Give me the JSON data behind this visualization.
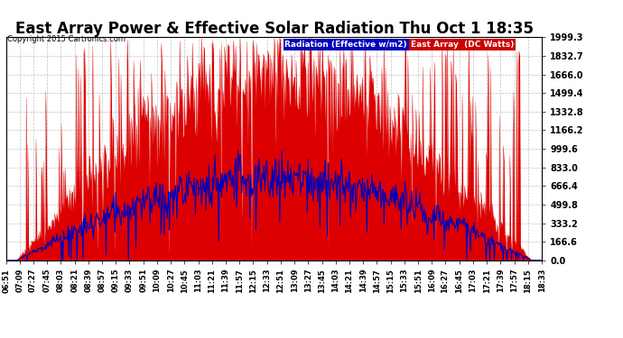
{
  "title": "East Array Power & Effective Solar Radiation Thu Oct 1 18:35",
  "copyright": "Copyright 2015 Cartronics.com",
  "legend_radiation": "Radiation (Effective w/m2)",
  "legend_east": "East Array  (DC Watts)",
  "legend_radiation_color": "#0000bb",
  "legend_east_color": "#cc0000",
  "y_ticks": [
    0.0,
    166.6,
    333.2,
    499.8,
    666.4,
    833.0,
    999.6,
    1166.2,
    1332.8,
    1499.4,
    1666.0,
    1832.7,
    1999.3
  ],
  "ymax": 1999.3,
  "ymin": 0.0,
  "background_color": "#ffffff",
  "plot_bg": "#ffffff",
  "grid_color": "#c0c0c0",
  "title_fontsize": 12,
  "x_tick_labels": [
    "06:51",
    "07:09",
    "07:27",
    "07:45",
    "08:03",
    "08:21",
    "08:39",
    "08:57",
    "09:15",
    "09:33",
    "09:51",
    "10:09",
    "10:27",
    "10:45",
    "11:03",
    "11:21",
    "11:39",
    "11:57",
    "12:15",
    "12:33",
    "12:51",
    "13:09",
    "13:27",
    "13:45",
    "14:03",
    "14:21",
    "14:39",
    "14:57",
    "15:15",
    "15:33",
    "15:51",
    "16:09",
    "16:27",
    "16:45",
    "17:03",
    "17:21",
    "17:39",
    "17:57",
    "18:15",
    "18:33"
  ]
}
